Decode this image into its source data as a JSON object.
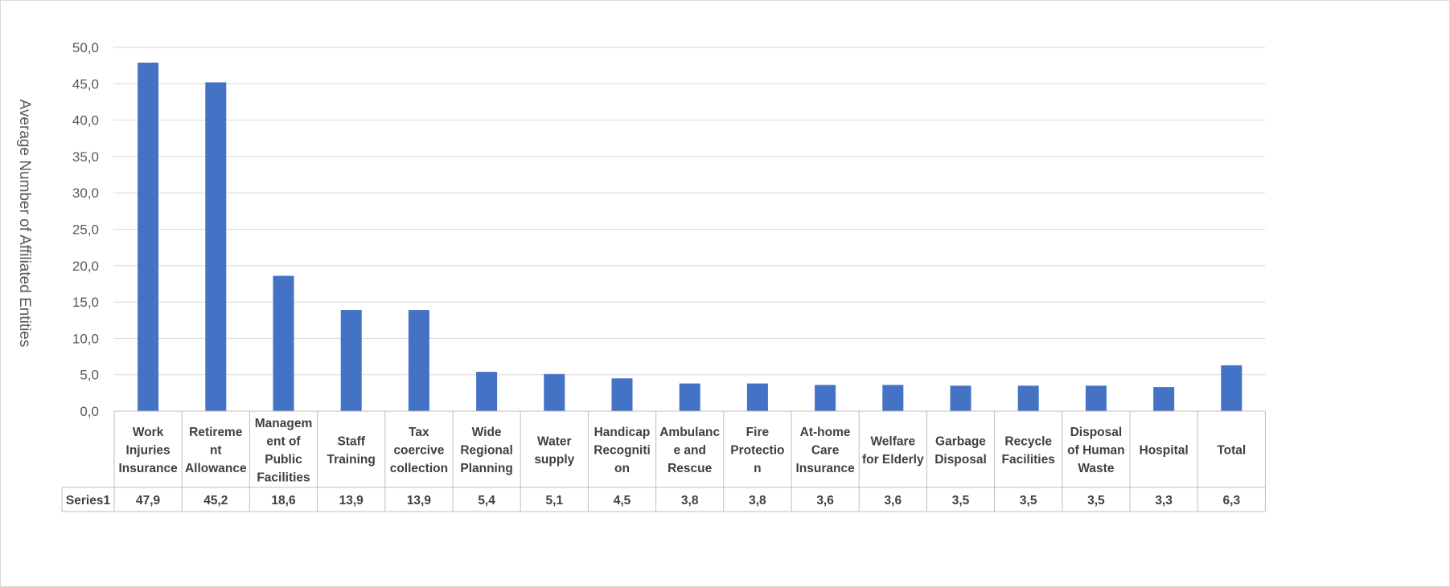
{
  "chart_data": {
    "type": "bar",
    "ylabel": "Average Number of Affiliated Entities",
    "ylim": [
      0,
      50
    ],
    "y_ticks": [
      "0,0",
      "5,0",
      "10,0",
      "15,0",
      "20,0",
      "25,0",
      "30,0",
      "35,0",
      "40,0",
      "45,0",
      "50,0"
    ],
    "grid": true,
    "bar_color": "#4472c4",
    "categories": [
      [
        "Work",
        "Injuries",
        "Insurance"
      ],
      [
        "Retireme",
        "nt",
        "Allowance"
      ],
      [
        "Managem",
        "ent of",
        "Public",
        "Facilities"
      ],
      [
        "Staff",
        "Training"
      ],
      [
        "Tax",
        "coercive",
        "collection"
      ],
      [
        "Wide",
        "Regional",
        "Planning"
      ],
      [
        "Water",
        "supply"
      ],
      [
        "Handicap",
        "Recogniti",
        "on"
      ],
      [
        "Ambulanc",
        "e and",
        "Rescue"
      ],
      [
        "Fire",
        "Protectio",
        "n"
      ],
      [
        "At-home",
        "Care",
        "Insurance"
      ],
      [
        "Welfare",
        "for Elderly"
      ],
      [
        "Garbage",
        "Disposal"
      ],
      [
        "Recycle",
        "Facilities"
      ],
      [
        "Disposal",
        "of Human",
        "Waste"
      ],
      [
        "Hospital"
      ],
      [
        "Total"
      ]
    ],
    "series": [
      {
        "name": "Series1",
        "values": [
          47.9,
          45.2,
          18.6,
          13.9,
          13.9,
          5.4,
          5.1,
          4.5,
          3.8,
          3.8,
          3.6,
          3.6,
          3.5,
          3.5,
          3.5,
          3.3,
          6.3
        ],
        "value_labels": [
          "47,9",
          "45,2",
          "18,6",
          "13,9",
          "13,9",
          "5,4",
          "5,1",
          "4,5",
          "3,8",
          "3,8",
          "3,6",
          "3,6",
          "3,5",
          "3,5",
          "3,5",
          "3,3",
          "6,3"
        ]
      }
    ]
  }
}
